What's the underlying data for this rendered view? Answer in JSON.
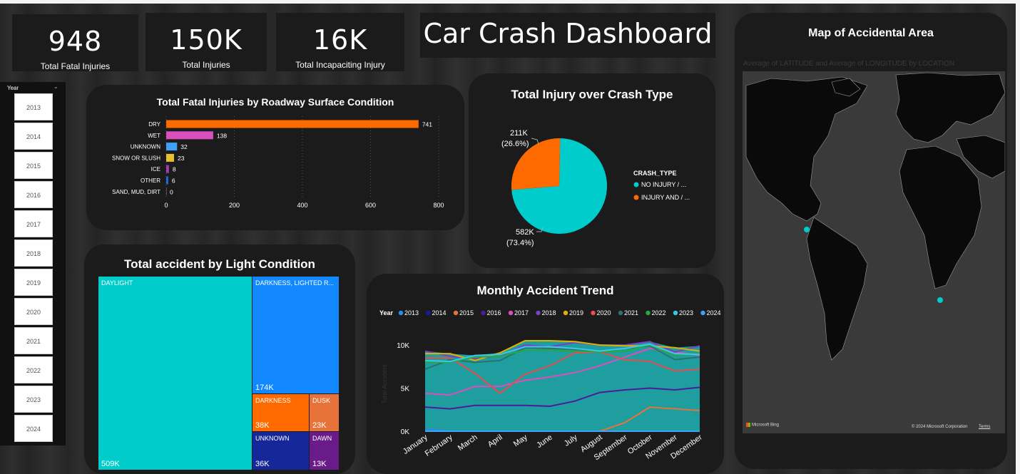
{
  "kpis": [
    {
      "value": "948",
      "label": "Total Fatal Injuries"
    },
    {
      "value": "150K",
      "label": "Total Injuries"
    },
    {
      "value": "16K",
      "label": "Total Incapaciting Injury"
    }
  ],
  "dashboard_title": "Car Crash Dashboard",
  "slicer": {
    "header": "Year",
    "years": [
      "2013",
      "2014",
      "2015",
      "2016",
      "2017",
      "2018",
      "2019",
      "2020",
      "2021",
      "2022",
      "2023",
      "2024"
    ]
  },
  "colors": {
    "orange": "#ff6a00",
    "teal": "#00cccc",
    "pink": "#d94fbb",
    "blue": "#1188ff",
    "yellow": "#e6c02e"
  },
  "chart_data": [
    {
      "type": "bar",
      "title": "Total Fatal Injuries by Roadway Surface Condition",
      "categories": [
        "DRY",
        "WET",
        "UNKNOWN",
        "SNOW OR SLUSH",
        "ICE",
        "OTHER",
        "SAND, MUD, DIRT"
      ],
      "values": [
        741,
        138,
        32,
        23,
        8,
        6,
        0
      ],
      "colors": [
        "#ff6a00",
        "#d94fbb",
        "#3fa2f7",
        "#e6c02e",
        "#a23ab8",
        "#1e6bd6",
        "#888888"
      ],
      "xticks": [
        "0",
        "200",
        "400",
        "600",
        "800"
      ],
      "xlim": [
        0,
        800
      ]
    },
    {
      "type": "pie",
      "title": "Total Injury over Crash Type",
      "legend_title": "CRASH_TYPE",
      "slices": [
        {
          "name": "NO INJURY / ...",
          "value": 582,
          "label": "582K",
          "pct": "(73.4%)",
          "color": "#00cccc"
        },
        {
          "name": "INJURY AND / ...",
          "value": 211,
          "label": "211K",
          "pct": "(26.6%)",
          "color": "#ff6a00"
        }
      ]
    },
    {
      "type": "treemap",
      "title": "Total accident by Light Condition",
      "items": [
        {
          "name": "DAYLIGHT",
          "label": "509K",
          "value": 509,
          "color": "#00cccc"
        },
        {
          "name": "DARKNESS, LIGHTED R...",
          "label": "174K",
          "value": 174,
          "color": "#1188ff"
        },
        {
          "name": "DARKNESS",
          "label": "38K",
          "value": 38,
          "color": "#ff6a00"
        },
        {
          "name": "DUSK",
          "label": "23K",
          "value": 23,
          "color": "#e8733a"
        },
        {
          "name": "UNKNOWN",
          "label": "36K",
          "value": 36,
          "color": "#16279a"
        },
        {
          "name": "DAWN",
          "label": "13K",
          "value": 13,
          "color": "#6a1b8a"
        }
      ]
    },
    {
      "type": "area",
      "title": "Monthly Accident Trend",
      "legend_title": "Year",
      "yaxis_label": "Total Accident",
      "ylim": [
        0,
        11000
      ],
      "yticks": [
        "0K",
        "5K",
        "10K"
      ],
      "categories": [
        "January",
        "February",
        "March",
        "April",
        "May",
        "June",
        "July",
        "August",
        "September",
        "October",
        "November",
        "December"
      ],
      "series": [
        {
          "name": "2013",
          "color": "#2e8ce6",
          "values": [
            300,
            0,
            0,
            0,
            0,
            0,
            0,
            0,
            0,
            0,
            0,
            0
          ]
        },
        {
          "name": "2014",
          "color": "#1a1a9a",
          "values": [
            0,
            0,
            0,
            0,
            0,
            0,
            0,
            0,
            0,
            0,
            0,
            0
          ]
        },
        {
          "name": "2015",
          "color": "#e8733a",
          "values": [
            0,
            0,
            0,
            0,
            0,
            0,
            0,
            0,
            1000,
            2800,
            2600,
            2400
          ]
        },
        {
          "name": "2016",
          "color": "#4b1aa0",
          "values": [
            2800,
            2600,
            3000,
            3000,
            3000,
            2900,
            3500,
            4500,
            4800,
            5000,
            4800,
            5100
          ]
        },
        {
          "name": "2017",
          "color": "#d94fbb",
          "values": [
            4400,
            4200,
            5200,
            5200,
            5900,
            6300,
            6800,
            7600,
            8600,
            9600,
            9200,
            8800
          ]
        },
        {
          "name": "2018",
          "color": "#7b3fc4",
          "values": [
            9300,
            8700,
            8400,
            8800,
            10000,
            9800,
            10300,
            10000,
            10000,
            10400,
            9200,
            9900
          ]
        },
        {
          "name": "2019",
          "color": "#d9b400",
          "values": [
            9000,
            9000,
            8200,
            9100,
            10500,
            10500,
            10400,
            10000,
            9900,
            9900,
            9700,
            9300
          ]
        },
        {
          "name": "2020",
          "color": "#e84c4c",
          "values": [
            8500,
            8500,
            6700,
            4400,
            6600,
            7600,
            9100,
            9200,
            8300,
            8100,
            7000,
            7200
          ]
        },
        {
          "name": "2021",
          "color": "#2f6f6f",
          "values": [
            7200,
            8300,
            8000,
            8200,
            9700,
            9600,
            9500,
            9200,
            9600,
            9900,
            8300,
            8600
          ]
        },
        {
          "name": "2022",
          "color": "#27a844",
          "values": [
            8000,
            8000,
            8600,
            8700,
            9400,
            9400,
            9300,
            9200,
            9300,
            10000,
            8800,
            9000
          ]
        },
        {
          "name": "2023",
          "color": "#3cc8e8",
          "values": [
            8200,
            8100,
            8800,
            8900,
            9800,
            9800,
            9600,
            9300,
            9600,
            10100,
            9000,
            8900
          ]
        },
        {
          "name": "2024",
          "color": "#3fa2f7",
          "values": [
            0,
            0,
            0,
            0,
            0,
            0,
            0,
            0,
            0,
            0,
            0,
            0
          ]
        }
      ]
    }
  ],
  "map": {
    "title": "Map of Accidental Area",
    "subtitle": "Average of LATITUDE and Average of LONGITUDE by LOCATION",
    "bing": "Microsoft Bing",
    "copyright": "© 2024 Microsoft Corporation",
    "terms": "Terms"
  }
}
